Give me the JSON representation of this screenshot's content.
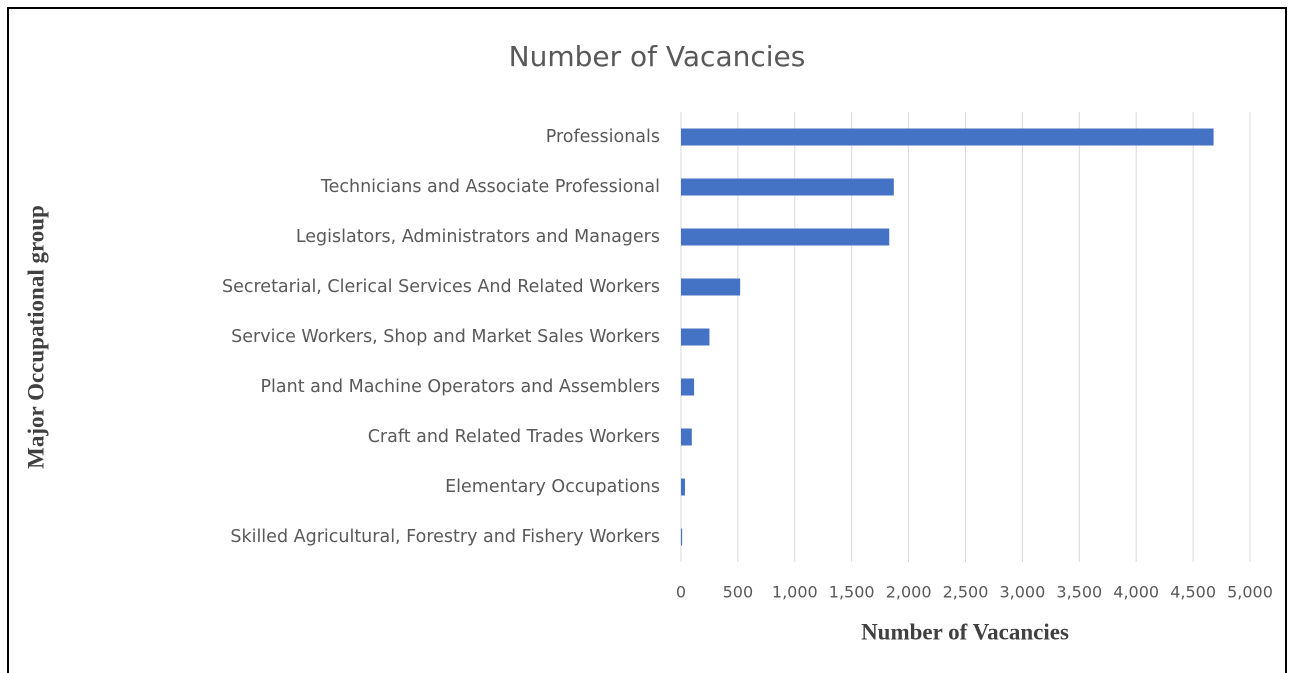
{
  "chart_data": {
    "type": "barh",
    "title": "Number of Vacancies",
    "x_label": "Number of Vacancies",
    "y_label": "Major Occupational group",
    "categories": [
      "Professionals",
      "Technicians and Associate Professional",
      "Legislators, Administrators and Managers",
      "Secretarial, Clerical Services And Related Workers",
      "Service Workers, Shop and Market Sales Workers",
      "Plant and Machine Operators and Assemblers",
      "Craft and Related Trades Workers",
      "Elementary Occupations",
      "Skilled Agricultural, Forestry and Fishery Workers"
    ],
    "values": [
      4680,
      1870,
      1830,
      520,
      250,
      115,
      95,
      35,
      10
    ],
    "color": "#4472c4",
    "xlim": [
      0,
      5000
    ],
    "xticks": [
      0,
      500,
      {
        "value": 1000,
        "label": "1,000"
      },
      {
        "value": 1500,
        "label": "1,500"
      },
      {
        "value": 2000,
        "label": "2,000"
      },
      {
        "value": 2500,
        "label": "2,500"
      },
      {
        "value": 3000,
        "label": "3,000"
      },
      {
        "value": 3500,
        "label": "3,500"
      },
      {
        "value": 4000,
        "label": "4,000"
      },
      {
        "value": 4500,
        "label": "4,500"
      },
      {
        "value": 5000,
        "label": "5,000"
      }
    ],
    "grid": true
  }
}
